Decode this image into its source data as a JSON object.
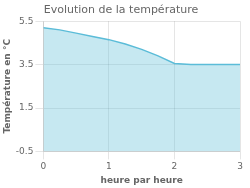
{
  "chart_data": {
    "type": "area",
    "title": "Evolution de la température",
    "xlabel": "heure par heure",
    "ylabel": "Température en °C",
    "x": [
      0,
      0.25,
      0.5,
      0.75,
      1.0,
      1.25,
      1.5,
      1.75,
      2.0,
      2.25,
      2.5,
      2.75,
      3.0
    ],
    "values": [
      5.2,
      5.1,
      4.95,
      4.8,
      4.65,
      4.45,
      4.2,
      3.9,
      3.55,
      3.5,
      3.5,
      3.5,
      3.5
    ],
    "color": "#5bbcd8",
    "xlim": [
      0,
      3
    ],
    "ylim": [
      -0.5,
      5.5
    ],
    "xticks": [
      0,
      1,
      2,
      3
    ],
    "yticks": [
      -0.5,
      1.5,
      3.5,
      5.5
    ],
    "grid": true
  }
}
